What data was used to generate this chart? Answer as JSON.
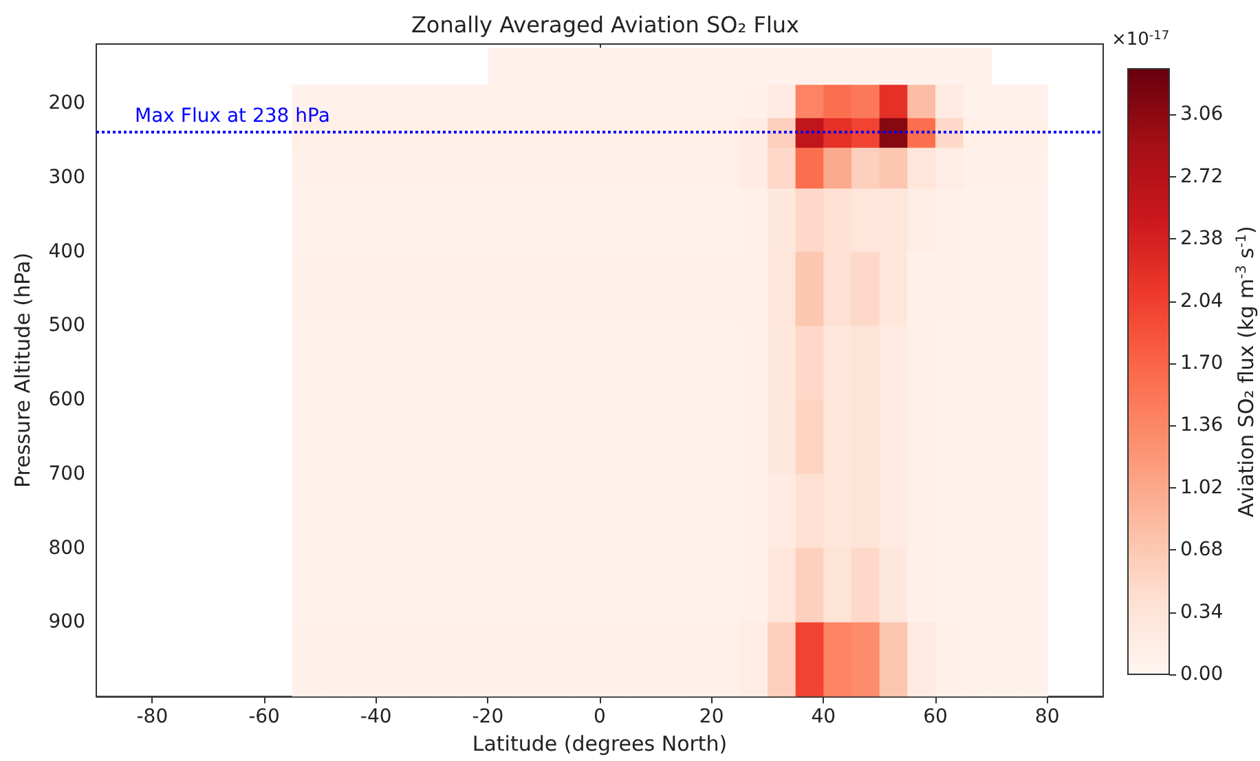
{
  "chart_data": {
    "type": "heatmap",
    "title": "Zonally Averaged Aviation SO₂ Flux",
    "xlabel": "Latitude (degrees North)",
    "ylabel": "Pressure Altitude (hPa)",
    "clabel": "Aviation SO₂ flux (kg m$^{-3}$ s$^{-1}$)",
    "annotations": [
      "×10$^{-17}$"
    ],
    "x": [
      -87.5,
      -82.5,
      -77.5,
      -72.5,
      -67.5,
      -62.5,
      -57.5,
      -52.5,
      -47.5,
      -42.5,
      -37.5,
      -32.5,
      -27.5,
      -22.5,
      -17.5,
      -12.5,
      -7.5,
      -2.5,
      2.5,
      7.5,
      12.5,
      17.5,
      22.5,
      27.5,
      32.5,
      37.5,
      42.5,
      47.5,
      52.5,
      57.5,
      62.5,
      67.5,
      72.5,
      77.5,
      82.5,
      87.5
    ],
    "y": [
      150,
      200,
      240,
      280,
      350,
      450,
      550,
      650,
      750,
      850,
      950
    ],
    "cells": [
      [
        null,
        null,
        null,
        null,
        null,
        null,
        null,
        null,
        null,
        null,
        null,
        null,
        null,
        null,
        0.05,
        0.05,
        0.05,
        0.05,
        0.05,
        0.05,
        0.05,
        0.05,
        0.05,
        0.05,
        0.05,
        0.05,
        0.05,
        0.05,
        0.05,
        0.05,
        0.05,
        0.05,
        null,
        null,
        null,
        null
      ],
      [
        null,
        null,
        null,
        null,
        null,
        null,
        null,
        0.07,
        0.07,
        0.07,
        0.07,
        0.07,
        0.07,
        0.07,
        0.07,
        0.07,
        0.07,
        0.07,
        0.07,
        0.07,
        0.07,
        0.07,
        0.07,
        0.1,
        0.2,
        1.4,
        1.6,
        1.5,
        2.2,
        0.8,
        0.2,
        0.07,
        0.07,
        0.07,
        null,
        null
      ],
      [
        null,
        null,
        null,
        null,
        null,
        null,
        null,
        0.12,
        0.12,
        0.12,
        0.12,
        0.12,
        0.12,
        0.12,
        0.12,
        0.12,
        0.12,
        0.12,
        0.12,
        0.12,
        0.12,
        0.12,
        0.12,
        0.2,
        0.6,
        2.6,
        2.2,
        2.0,
        3.1,
        1.6,
        0.5,
        0.12,
        0.12,
        0.12,
        null,
        null
      ],
      [
        null,
        null,
        null,
        null,
        null,
        null,
        null,
        0.1,
        0.1,
        0.1,
        0.1,
        0.1,
        0.1,
        0.1,
        0.1,
        0.1,
        0.1,
        0.1,
        0.1,
        0.1,
        0.1,
        0.1,
        0.1,
        0.2,
        0.5,
        1.6,
        1.0,
        0.6,
        0.7,
        0.3,
        0.15,
        0.08,
        0.08,
        0.08,
        null,
        null
      ],
      [
        null,
        null,
        null,
        null,
        null,
        null,
        null,
        0.06,
        0.06,
        0.06,
        0.06,
        0.06,
        0.06,
        0.06,
        0.06,
        0.06,
        0.06,
        0.06,
        0.06,
        0.06,
        0.06,
        0.06,
        0.06,
        0.1,
        0.25,
        0.5,
        0.4,
        0.3,
        0.3,
        0.15,
        0.1,
        0.06,
        0.06,
        0.06,
        null,
        null
      ],
      [
        null,
        null,
        null,
        null,
        null,
        null,
        null,
        0.08,
        0.08,
        0.08,
        0.08,
        0.08,
        0.08,
        0.08,
        0.08,
        0.08,
        0.08,
        0.08,
        0.08,
        0.08,
        0.08,
        0.08,
        0.08,
        0.1,
        0.3,
        0.7,
        0.4,
        0.5,
        0.3,
        0.1,
        0.08,
        0.06,
        0.06,
        0.06,
        null,
        null
      ],
      [
        null,
        null,
        null,
        null,
        null,
        null,
        null,
        0.06,
        0.06,
        0.06,
        0.06,
        0.06,
        0.06,
        0.06,
        0.06,
        0.06,
        0.06,
        0.06,
        0.06,
        0.06,
        0.06,
        0.06,
        0.06,
        0.08,
        0.25,
        0.5,
        0.3,
        0.35,
        0.2,
        0.08,
        0.06,
        0.05,
        0.05,
        0.05,
        null,
        null
      ],
      [
        null,
        null,
        null,
        null,
        null,
        null,
        null,
        0.06,
        0.06,
        0.06,
        0.06,
        0.06,
        0.06,
        0.06,
        0.06,
        0.06,
        0.06,
        0.06,
        0.06,
        0.06,
        0.06,
        0.06,
        0.06,
        0.08,
        0.25,
        0.55,
        0.3,
        0.35,
        0.2,
        0.08,
        0.06,
        0.05,
        0.05,
        0.05,
        null,
        null
      ],
      [
        null,
        null,
        null,
        null,
        null,
        null,
        null,
        0.05,
        0.05,
        0.05,
        0.05,
        0.05,
        0.05,
        0.05,
        0.05,
        0.05,
        0.05,
        0.05,
        0.05,
        0.05,
        0.05,
        0.05,
        0.05,
        0.08,
        0.2,
        0.4,
        0.3,
        0.35,
        0.2,
        0.08,
        0.05,
        0.05,
        0.05,
        0.05,
        null,
        null
      ],
      [
        null,
        null,
        null,
        null,
        null,
        null,
        null,
        0.06,
        0.06,
        0.06,
        0.06,
        0.06,
        0.06,
        0.06,
        0.06,
        0.06,
        0.06,
        0.06,
        0.06,
        0.06,
        0.06,
        0.06,
        0.06,
        0.1,
        0.3,
        0.6,
        0.35,
        0.5,
        0.25,
        0.1,
        0.06,
        0.05,
        0.05,
        0.05,
        null,
        null
      ],
      [
        null,
        null,
        null,
        null,
        null,
        null,
        null,
        0.08,
        0.08,
        0.08,
        0.08,
        0.08,
        0.08,
        0.08,
        0.08,
        0.08,
        0.08,
        0.08,
        0.08,
        0.08,
        0.08,
        0.08,
        0.08,
        0.15,
        0.6,
        2.0,
        1.4,
        1.3,
        0.7,
        0.2,
        0.08,
        0.06,
        0.06,
        0.06,
        null,
        null
      ]
    ],
    "xlim": [
      -90,
      90
    ],
    "xticks": [
      -80,
      -60,
      -40,
      -20,
      0,
      20,
      40,
      60,
      80
    ],
    "ylim": [
      1000,
      120
    ],
    "yticks": [
      200,
      300,
      400,
      500,
      600,
      700,
      800,
      900
    ],
    "clim": [
      0,
      3.31
    ],
    "cticks": [
      {
        "value": 0,
        "label": "0.00"
      },
      0.34,
      0.68,
      1.02,
      1.36,
      {
        "value": 1.7,
        "label": "1.70"
      },
      2.04,
      2.38,
      2.72,
      3.06
    ],
    "ref_lines": [
      {
        "axis": "y",
        "value": 238,
        "label": "Max Flux at 238 hPa",
        "color": "#0000ff",
        "line_style": "dotted"
      }
    ]
  }
}
